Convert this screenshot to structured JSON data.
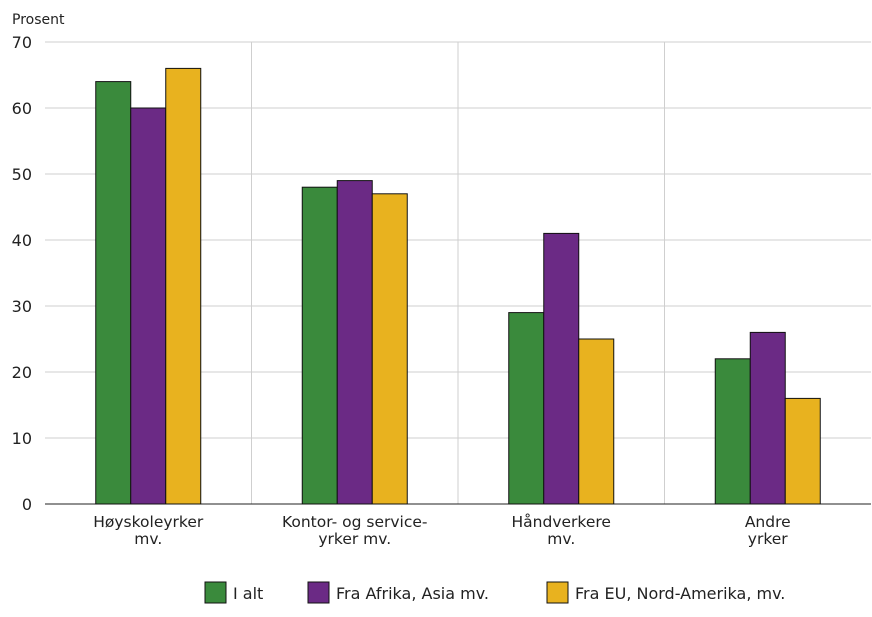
{
  "chart_data": {
    "type": "bar",
    "ylabel": "Prosent",
    "ylim": [
      0,
      70
    ],
    "yticks": [
      0,
      10,
      20,
      30,
      40,
      50,
      60,
      70
    ],
    "grid": true,
    "categories": [
      [
        "Høyskoleyrker",
        "mv."
      ],
      [
        "Kontor- og service-",
        "yrker mv."
      ],
      [
        "Håndverkere",
        "mv."
      ],
      [
        "Andre",
        "yrker"
      ]
    ],
    "series": [
      {
        "name": "I alt",
        "color": "#3a8a3c",
        "values": [
          64,
          48,
          29,
          22
        ]
      },
      {
        "name": "Fra Afrika, Asia mv.",
        "color": "#6b2a85",
        "values": [
          60,
          49,
          41,
          26
        ]
      },
      {
        "name": "Fra EU, Nord-Amerika, mv.",
        "color": "#e8b21f",
        "values": [
          66,
          47,
          25,
          16
        ]
      }
    ],
    "legend_position": "bottom"
  }
}
